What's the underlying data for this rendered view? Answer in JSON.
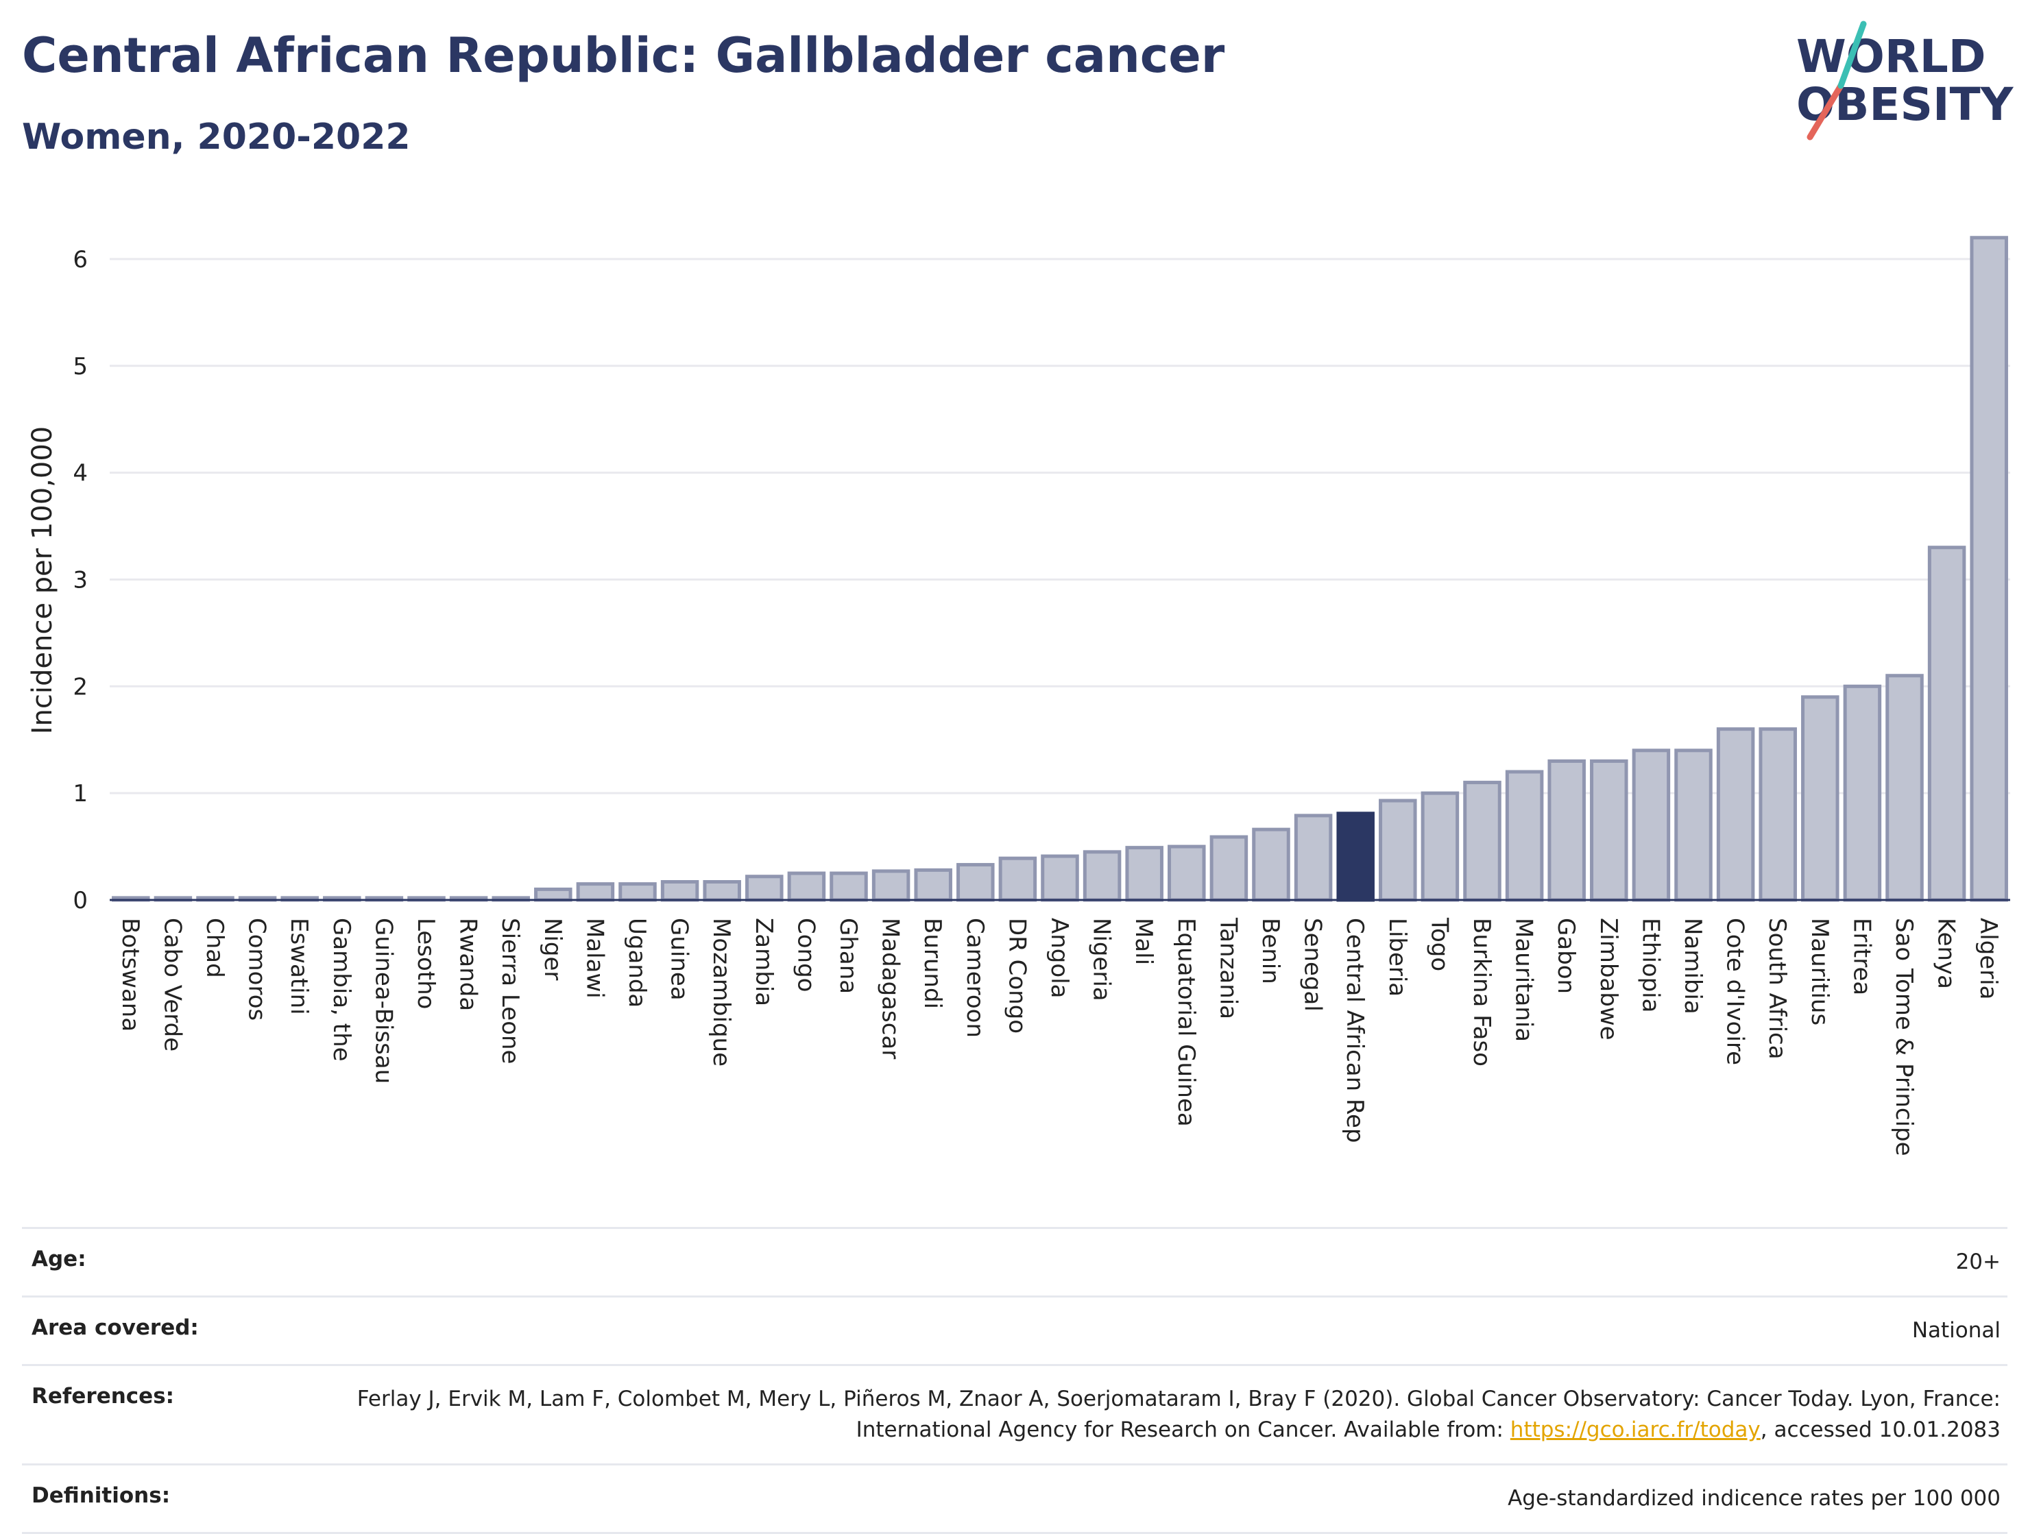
{
  "header": {
    "title": "Central African Republic: Gallbladder cancer",
    "subtitle": "Women, 2020-2022"
  },
  "logo": {
    "line1": "WORLD",
    "line2": "OBESITY"
  },
  "colors": {
    "highlight": "#2b3763",
    "bar_fill": "#bfc3d1",
    "bar_stroke": "#9096b0",
    "grid": "#e9e9ee"
  },
  "chart_data": {
    "type": "bar",
    "ylabel": "Incidence per 100,000",
    "ylim": [
      0,
      6.5
    ],
    "yticks": [
      0,
      1,
      2,
      3,
      4,
      5,
      6
    ],
    "highlight": "Central African Rep",
    "categories": [
      "Botswana",
      "Cabo Verde",
      "Chad",
      "Comoros",
      "Eswatini",
      "Gambia, the",
      "Guinea-Bissau",
      "Lesotho",
      "Rwanda",
      "Sierra Leone",
      "Niger",
      "Malawi",
      "Uganda",
      "Guinea",
      "Mozambique",
      "Zambia",
      "Congo",
      "Ghana",
      "Madagascar",
      "Burundi",
      "Cameroon",
      "DR Congo",
      "Angola",
      "Nigeria",
      "Mali",
      "Equatorial Guinea",
      "Tanzania",
      "Benin",
      "Senegal",
      "Central African Rep",
      "Liberia",
      "Togo",
      "Burkina Faso",
      "Mauritania",
      "Gabon",
      "Zimbabwe",
      "Ethiopia",
      "Namibia",
      "Cote d'Ivoire",
      "South Africa",
      "Mauritius",
      "Eritrea",
      "Sao Tome & Principe",
      "Kenya",
      "Algeria"
    ],
    "values": [
      0.02,
      0.02,
      0.02,
      0.02,
      0.02,
      0.02,
      0.02,
      0.02,
      0.02,
      0.02,
      0.1,
      0.15,
      0.15,
      0.17,
      0.17,
      0.22,
      0.25,
      0.25,
      0.27,
      0.28,
      0.33,
      0.39,
      0.41,
      0.45,
      0.49,
      0.5,
      0.59,
      0.66,
      0.79,
      0.81,
      0.93,
      1.0,
      1.1,
      1.2,
      1.3,
      1.3,
      1.4,
      1.4,
      1.6,
      1.6,
      1.9,
      2.0,
      2.1,
      3.3,
      6.2
    ]
  },
  "info": {
    "age": {
      "label": "Age:",
      "value": "20+"
    },
    "area": {
      "label": "Area covered:",
      "value": "National"
    },
    "references": {
      "label": "References:",
      "text_before": "Ferlay J, Ervik M, Lam F, Colombet M, Mery L, Piñeros M, Znaor A, Soerjomataram I, Bray F (2020). Global Cancer Observatory: Cancer Today. Lyon, France: International Agency for Research on Cancer. Available from: ",
      "link": "https://gco.iarc.fr/today",
      "text_after": ", accessed 10.01.2083"
    },
    "definitions": {
      "label": "Definitions:",
      "value": "Age-standardized indicence rates per 100 000"
    }
  }
}
